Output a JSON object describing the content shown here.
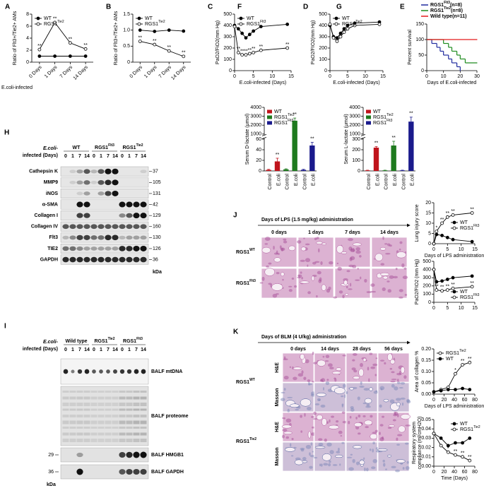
{
  "chart_data": [
    {
      "type": "line",
      "panel": "A",
      "ylabel": "Ratio of Flt3+/Tie2+ AMs",
      "xlabel": "E.coli-infected",
      "categories": [
        "0 Days",
        "1 Days",
        "7 Days",
        "14 Days"
      ],
      "ylim": [
        0,
        8
      ],
      "yticks": [
        0,
        2,
        4,
        6,
        8
      ],
      "legend": "upper left",
      "series": [
        {
          "name": "WT",
          "color": "#000000",
          "marker": "filled",
          "values": [
            1,
            1,
            1,
            1
          ]
        },
        {
          "name": "RGS1",
          "sup": "Tie2",
          "color": "#000000",
          "marker": "open",
          "values": [
            2.1,
            6.6,
            3.2,
            2.2
          ],
          "sig": [
            "**",
            "**",
            "**",
            "**"
          ]
        }
      ]
    },
    {
      "type": "line",
      "panel": "B",
      "ylabel": "Ratio of Flt3+/Tie2+ AMs",
      "categories": [
        "0 Days",
        "1 Days",
        "7 Days",
        "14 Days"
      ],
      "ylim": [
        0,
        1.5
      ],
      "yticks": [
        0,
        0.5,
        {
          "value": 1,
          "label": "1.0"
        },
        1.5
      ],
      "legend": "upper left",
      "series": [
        {
          "name": "WT",
          "color": "#000000",
          "marker": "filled",
          "values": [
            1,
            0.96,
            1,
            0.97
          ]
        },
        {
          "name": "RGS1",
          "sup": "Tie2",
          "color": "#000000",
          "marker": "open",
          "values": [
            0.65,
            0.55,
            0.35,
            0.18
          ],
          "sig": [
            "**",
            "**",
            "**",
            "**"
          ]
        }
      ]
    },
    {
      "type": "line",
      "panel": "C",
      "ylabel": "PaO2/FiO2(mm Hg)",
      "xlabel": "E.coli-infected (Days)",
      "x": [
        0,
        1,
        2,
        3,
        4,
        5,
        7,
        14
      ],
      "xlim": [
        0,
        15
      ],
      "xticks": [
        0,
        5,
        10,
        15
      ],
      "ylim": [
        0,
        500
      ],
      "yticks": [
        0,
        100,
        200,
        300,
        400,
        500
      ],
      "legend": "upper left",
      "series": [
        {
          "name": "WT",
          "color": "#000000",
          "marker": "filled",
          "values": [
            400,
            370,
            330,
            290,
            320,
            350,
            390,
            410
          ]
        },
        {
          "name": "RGS1",
          "sup": "Flt3",
          "color": "#000000",
          "marker": "open",
          "values": [
            390,
            160,
            140,
            140,
            150,
            160,
            180,
            200
          ],
          "sig": [
            null,
            "**",
            "**",
            "**",
            "**",
            "**",
            "**",
            "**"
          ]
        }
      ]
    },
    {
      "type": "line",
      "panel": "D",
      "ylabel": "PaO2/FIO2(mm Hg)",
      "xlabel": "E.coli-infected (Days)",
      "x": [
        0,
        1,
        2,
        3,
        4,
        5,
        7,
        14
      ],
      "xlim": [
        0,
        15
      ],
      "xticks": [
        0,
        5,
        10,
        15
      ],
      "ylim": [
        0,
        500
      ],
      "yticks": [
        0,
        100,
        200,
        300,
        400,
        500
      ],
      "legend": "upper left",
      "series": [
        {
          "name": "WT",
          "color": "#000000",
          "marker": "filled",
          "values": [
            400,
            300,
            290,
            330,
            370,
            400,
            420,
            430
          ]
        },
        {
          "name": "RGS1",
          "sup": "Tie2",
          "color": "#000000",
          "marker": "open",
          "values": [
            410,
            290,
            260,
            300,
            340,
            370,
            400,
            410
          ]
        }
      ]
    },
    {
      "type": "step",
      "panel": "E",
      "ylabel": "Percent survival",
      "xlabel": "Days of E.coli-infected",
      "xlim": [
        0,
        30
      ],
      "xticks": [
        0,
        10,
        20,
        30
      ],
      "ylim": [
        0,
        150
      ],
      "yticks": [
        0,
        50,
        100,
        150
      ],
      "legend": "top",
      "series": [
        {
          "name": "RGS1",
          "sup": "Flt3",
          "n": "(n=8)",
          "color": "#1f2a9e",
          "x": [
            0,
            3,
            6,
            8,
            10,
            13,
            15,
            18,
            20
          ],
          "values": [
            100,
            87.5,
            75,
            62.5,
            50,
            37.5,
            25,
            12.5,
            0
          ]
        },
        {
          "name": "RGS1",
          "sup": "Tie2",
          "n": "(n=8)",
          "color": "#1e8b1e",
          "x": [
            0,
            10,
            13,
            15,
            18,
            20,
            23,
            30
          ],
          "values": [
            100,
            87.5,
            75,
            62.5,
            50,
            37.5,
            25,
            25
          ]
        },
        {
          "name": "Wild type",
          "n": "(n=11)",
          "color": "#e41a1c",
          "x": [
            0,
            30
          ],
          "values": [
            100,
            100
          ]
        }
      ]
    },
    {
      "type": "bar",
      "panel": "F",
      "ylabel": "Serum D-lactate (μmol)",
      "categories": [
        "Control",
        "E.coli",
        "Control",
        "E.coli",
        "Control",
        "E.coli"
      ],
      "values": [
        2,
        18,
        3,
        2500,
        2,
        48
      ],
      "errors": [
        1,
        6,
        1,
        300,
        1,
        15
      ],
      "colors": [
        "#c0141c",
        "#c0141c",
        "#1e7a1e",
        "#1e7a1e",
        "#1a1a8c",
        "#1a1a8c"
      ],
      "sig": [
        null,
        "**",
        null,
        "**",
        null,
        "**"
      ],
      "ylim": [
        0,
        4000
      ],
      "ybreak": [
        60,
        1000
      ],
      "yticks": [
        0,
        20,
        40,
        60,
        1000,
        2000,
        3000,
        4000
      ],
      "legend": "upper left",
      "legend_entries": [
        {
          "name": "WT",
          "color": "#c0141c"
        },
        {
          "name": "RGS1",
          "sup": "Tie2",
          "color": "#1e7a1e"
        },
        {
          "name": "RGS1",
          "sup": "Flt3",
          "color": "#1a1a8c"
        }
      ]
    },
    {
      "type": "bar",
      "panel": "G",
      "ylabel": "Serum L-lactate (μmol)",
      "categories": [
        "Control",
        "E.coli",
        "Control",
        "E.coli",
        "Control",
        "E.coli"
      ],
      "values": [
        5,
        220,
        5,
        240,
        5,
        2400
      ],
      "errors": [
        2,
        10,
        2,
        40,
        2,
        500
      ],
      "colors": [
        "#c0141c",
        "#c0141c",
        "#1e7a1e",
        "#1e7a1e",
        "#1a1a8c",
        "#1a1a8c"
      ],
      "sig": [
        null,
        "**",
        null,
        "**",
        null,
        "**"
      ],
      "ylim": [
        0,
        4000
      ],
      "ybreak": [
        300,
        1000
      ],
      "yticks": [
        0,
        100,
        200,
        300,
        1000,
        2000,
        3000,
        4000
      ],
      "legend": "upper left",
      "legend_entries": [
        {
          "name": "WT",
          "color": "#c0141c"
        },
        {
          "name": "RGS1",
          "sup": "Tie2",
          "color": "#1e7a1e"
        },
        {
          "name": "RGS1",
          "sup": "Flt3",
          "color": "#1a1a8c"
        }
      ]
    },
    {
      "type": "line",
      "ylabel": "Lung injury score",
      "xlabel": "Days of LPS administration",
      "x": [
        0,
        1,
        3,
        5,
        7,
        14
      ],
      "xlim": [
        0,
        15
      ],
      "xticks": [
        0,
        5,
        10,
        15
      ],
      "ylim": [
        0,
        20
      ],
      "yticks": [
        0,
        5,
        10,
        15,
        20
      ],
      "legend": "right",
      "series": [
        {
          "name": "WT",
          "color": "#000000",
          "marker": "filled",
          "values": [
            0,
            4.5,
            4,
            3,
            2,
            1
          ]
        },
        {
          "name": "RGS1",
          "sup": "Flt3",
          "color": "#000000",
          "marker": "open",
          "values": [
            0,
            6,
            10,
            13,
            14,
            15
          ],
          "sig": [
            null,
            "*",
            "**",
            "**",
            "**",
            "**"
          ]
        }
      ]
    },
    {
      "type": "line",
      "ylabel": "PaO2/FIO2 (mm Hg)",
      "x": [
        0,
        1,
        3,
        5,
        7,
        14
      ],
      "xlim": [
        0,
        15
      ],
      "xticks": [
        0,
        5,
        10,
        15
      ],
      "ylim": [
        0,
        500
      ],
      "yticks": [
        0,
        100,
        200,
        300,
        400,
        500
      ],
      "legend": "lower right",
      "series": [
        {
          "name": "WT",
          "color": "#000000",
          "marker": "filled",
          "values": [
            400,
            250,
            260,
            280,
            300,
            320
          ]
        },
        {
          "name": "RGS1",
          "sup": "Flt3",
          "color": "#000000",
          "marker": "open",
          "values": [
            400,
            150,
            140,
            150,
            170,
            190
          ],
          "sig": [
            null,
            "**",
            "**",
            "**",
            "**",
            "**"
          ]
        }
      ]
    },
    {
      "type": "line",
      "ylabel": "Area of collagen %",
      "xlabel": "Days of LPS administration",
      "x": [
        0,
        14,
        28,
        42,
        56,
        70
      ],
      "xlim": [
        0,
        80
      ],
      "xticks": [
        0,
        20,
        40,
        60,
        80
      ],
      "ylim": [
        0,
        0.2
      ],
      "yticks": [
        {
          "value": 0,
          "label": "0.00"
        },
        0.05,
        {
          "value": 0.1,
          "label": "0.10"
        },
        0.15,
        {
          "value": 0.2,
          "label": "0.20"
        }
      ],
      "legend": "upper left",
      "series": [
        {
          "name": "RGS1",
          "sup": "Tie2",
          "color": "#000000",
          "marker": "open",
          "values": [
            0.01,
            0.02,
            0.03,
            0.09,
            0.13,
            0.14
          ],
          "sig": [
            null,
            null,
            null,
            "*",
            "**",
            "**"
          ]
        },
        {
          "name": "WT",
          "color": "#000000",
          "marker": "filled",
          "values": [
            0.01,
            0.015,
            0.02,
            0.02,
            0.025,
            0.02
          ]
        }
      ]
    },
    {
      "type": "line",
      "ylabel": [
        "Respiratory system",
        "compliance (ml/cmH2O)"
      ],
      "xlabel": "Time (Days)",
      "x": [
        0,
        14,
        28,
        42,
        56,
        70
      ],
      "xlim": [
        0,
        80
      ],
      "xticks": [
        0,
        20,
        40,
        60,
        80
      ],
      "ylim": [
        0,
        0.05
      ],
      "yticks": [
        {
          "value": 0,
          "label": "0.00"
        },
        0.01,
        0.02,
        0.03,
        0.04,
        0.05
      ],
      "legend": "upper right",
      "series": [
        {
          "name": "WT",
          "color": "#000000",
          "marker": "filled",
          "values": [
            0.035,
            0.03,
            0.022,
            0.025,
            0.025,
            0.03
          ]
        },
        {
          "name": "RGS1",
          "sup": "Tie2",
          "color": "#000000",
          "marker": "open",
          "values": [
            0.035,
            0.022,
            0.015,
            0.012,
            0.01,
            0.006
          ],
          "sig": [
            null,
            null,
            "*",
            "**",
            "**",
            "**"
          ]
        }
      ]
    }
  ],
  "blots": [
    {
      "panel": "H",
      "header": [
        "E.coli-",
        "infected (Days)"
      ],
      "groups": [
        {
          "name": "WT"
        },
        {
          "name": "RGS1",
          "sup": "Flt3"
        },
        {
          "name": "RGS1",
          "sup": "Tie2"
        }
      ],
      "days": [
        "0",
        "1",
        "7",
        "14",
        "0",
        "1",
        "7",
        "14",
        "0",
        "1",
        "7",
        "14"
      ],
      "rows": [
        {
          "label": "Cathepsin K",
          "kda": "37"
        },
        {
          "label": "MMP9",
          "kda": "105"
        },
        {
          "label": "iNOS",
          "kda": "131"
        },
        {
          "label": "α-SMA",
          "kda": "42"
        },
        {
          "label": "Collagen I",
          "kda": "129"
        },
        {
          "label": "Collagen IV",
          "kda": "160"
        },
        {
          "label": "Flt3",
          "kda": "130"
        },
        {
          "label": "TIE2",
          "kda": "126"
        },
        {
          "label": "GAPDH",
          "kda": "36"
        }
      ],
      "unit": "kDa"
    },
    {
      "panel": "I",
      "header": [
        "E.coli-",
        "infected (Days)"
      ],
      "groups": [
        {
          "name": "Wild type"
        },
        {
          "name": "RGS1",
          "sup": "Tie2"
        },
        {
          "name": "RGS1",
          "sup": "Flt3"
        }
      ],
      "days": [
        "0",
        "1",
        "7",
        "14",
        "0",
        "1",
        "7",
        "14",
        "0",
        "1",
        "7",
        "14"
      ],
      "rows": [
        {
          "label": "BALF mtDNA"
        },
        {
          "label": "BALF proteome"
        },
        {
          "label": "BALF HMGB1",
          "kda": "29"
        },
        {
          "label": "BALF GAPDH",
          "kda": "36"
        }
      ],
      "unit": "kDa"
    }
  ],
  "histology": [
    {
      "panel": "J",
      "title": "Days of LPS (1.5 mg/kg) administration",
      "columns": [
        "0 days",
        "1 days",
        "7 days",
        "14 days"
      ],
      "rows": [
        {
          "name": "RGS1",
          "sup": "WT"
        },
        {
          "name": "RGS1",
          "sup": "Flt3"
        }
      ]
    },
    {
      "panel": "K",
      "title": "Days of BLM (4 U/kg) administration",
      "columns": [
        "0 days",
        "14 days",
        "28 days",
        "56 days"
      ],
      "rows": [
        {
          "name": "RGS1",
          "sup": "WT"
        },
        {
          "name": "RGS1",
          "sup": "Tie2"
        }
      ],
      "stains": [
        "H&E",
        "Masson"
      ]
    }
  ]
}
